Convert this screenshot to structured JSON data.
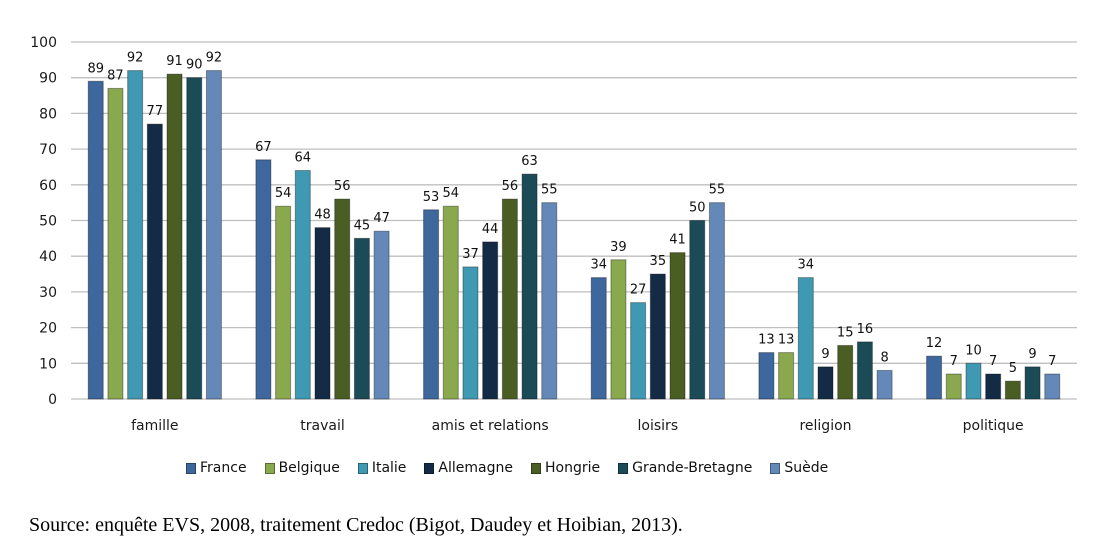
{
  "chart_data": {
    "type": "bar",
    "title": "",
    "xlabel": "",
    "ylabel": "",
    "ylim": [
      0,
      100
    ],
    "yticks": [
      0,
      10,
      20,
      30,
      40,
      50,
      60,
      70,
      80,
      90,
      100
    ],
    "grid": true,
    "legend_position": "bottom",
    "categories": [
      "famille",
      "travail",
      "amis et relations",
      "loisirs",
      "religion",
      "politique"
    ],
    "series": [
      {
        "name": "France",
        "color": "#3E679D",
        "values": [
          89,
          67,
          53,
          34,
          13,
          12
        ]
      },
      {
        "name": "Belgique",
        "color": "#8AA84D",
        "values": [
          87,
          54,
          54,
          39,
          13,
          7
        ]
      },
      {
        "name": "Italie",
        "color": "#3F99B2",
        "values": [
          92,
          64,
          37,
          27,
          34,
          10
        ]
      },
      {
        "name": "Allemagne",
        "color": "#142B46",
        "values": [
          77,
          48,
          44,
          35,
          9,
          7
        ]
      },
      {
        "name": "Hongrie",
        "color": "#4A5E24",
        "values": [
          91,
          56,
          56,
          41,
          15,
          5
        ]
      },
      {
        "name": "Grande-Bretagne",
        "color": "#1C4B58",
        "values": [
          90,
          45,
          63,
          50,
          16,
          9
        ]
      },
      {
        "name": "Suède",
        "color": "#6489B8",
        "values": [
          92,
          47,
          55,
          55,
          8,
          7
        ]
      }
    ]
  },
  "source": "Source: enquête EVS, 2008, traitement Credoc (Bigot, Daudey et Hoibian, 2013)."
}
